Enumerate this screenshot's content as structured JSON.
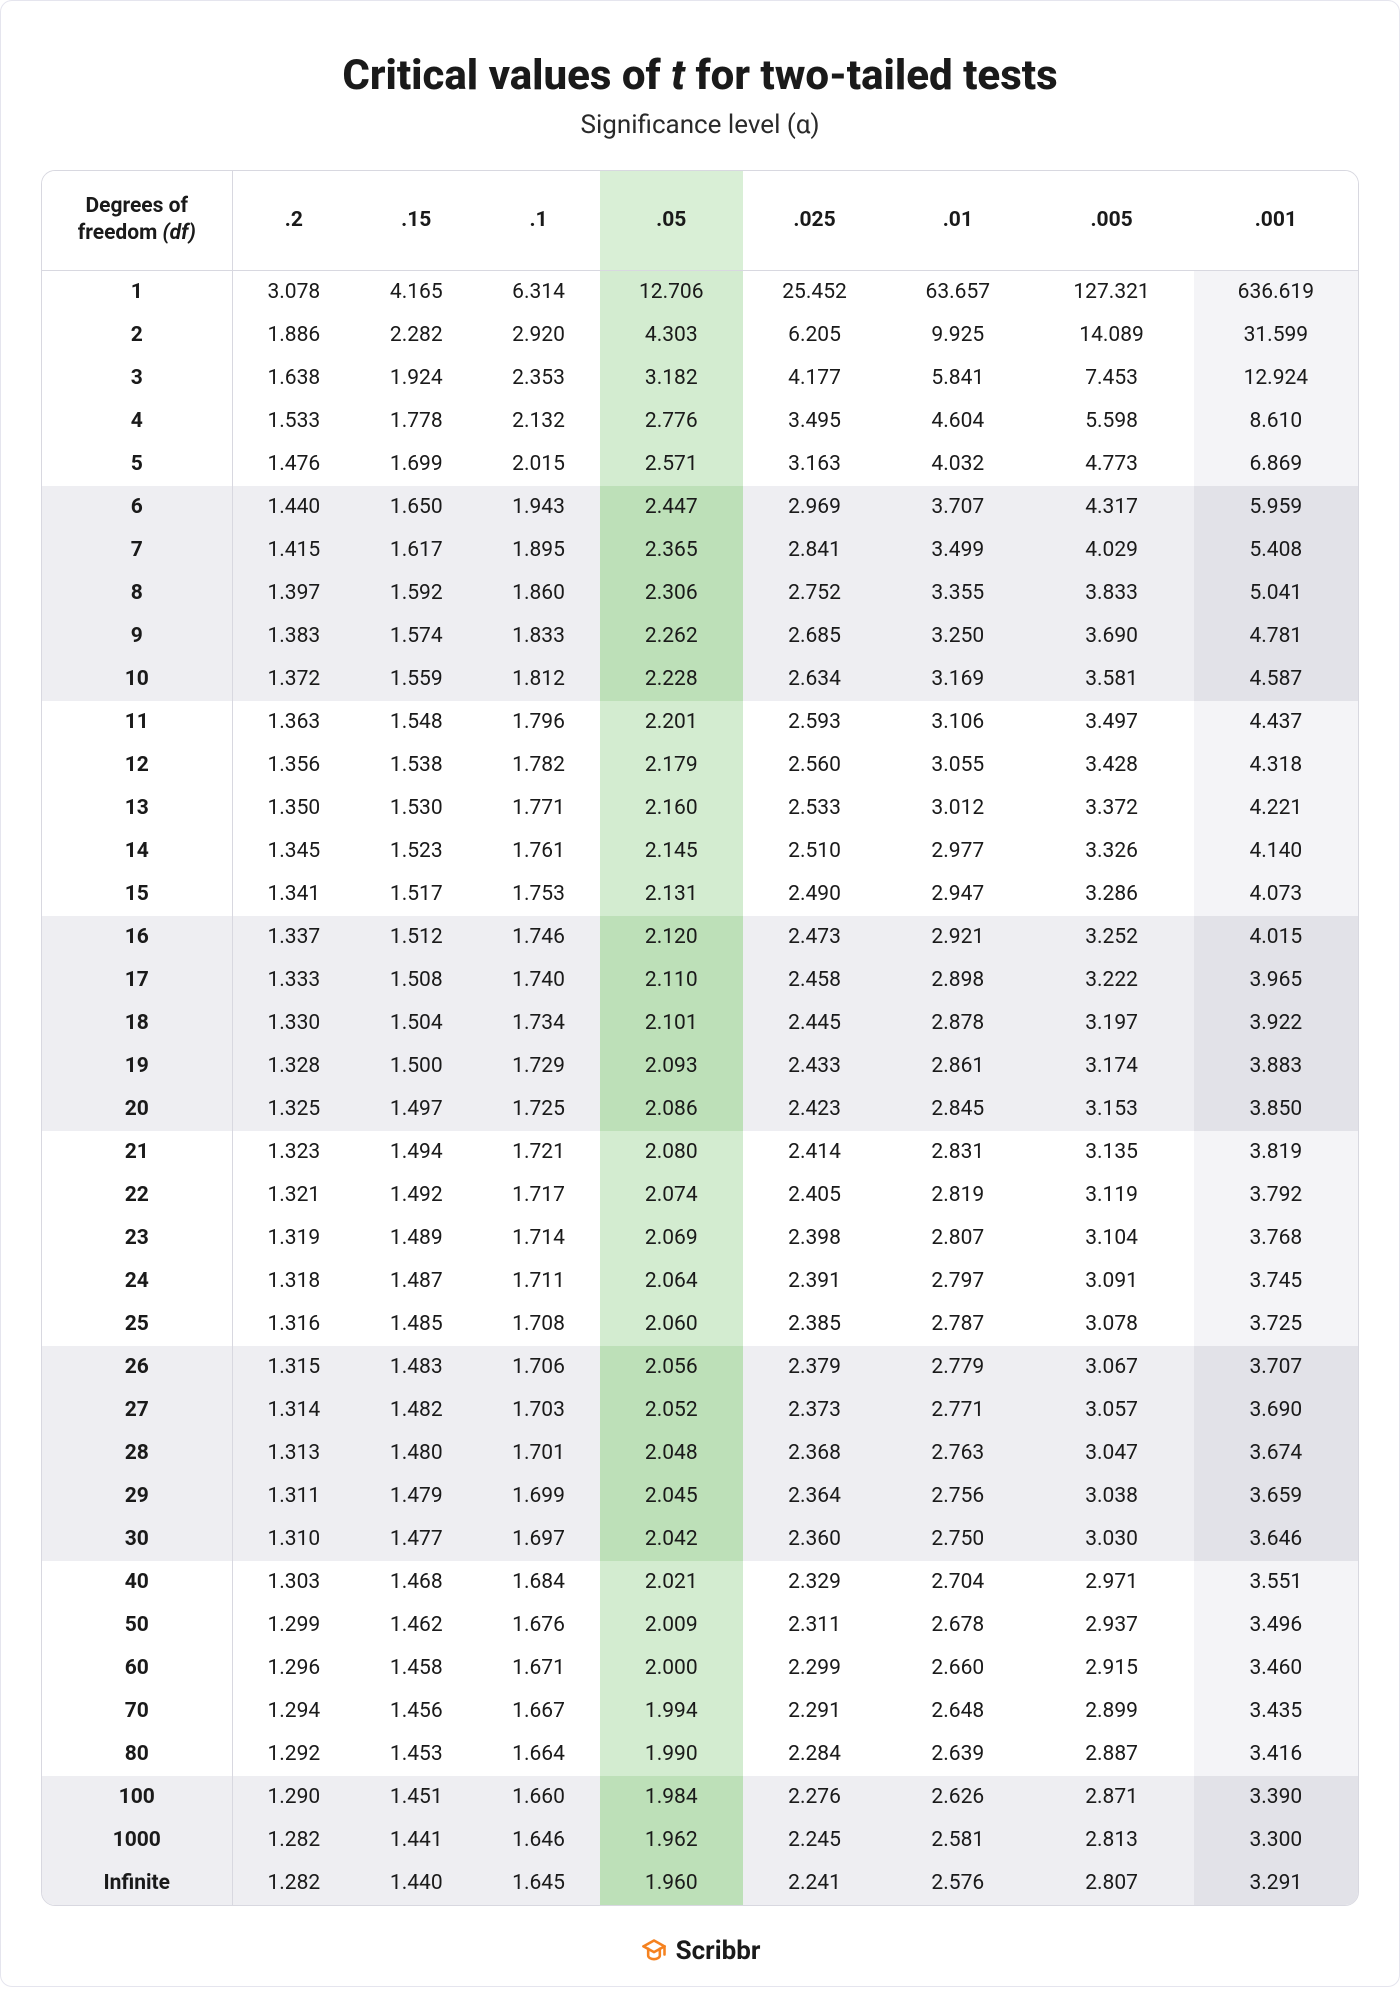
{
  "title_pre": "Critical values of ",
  "title_ital": "t",
  "title_post": " for two-tailed tests",
  "subtitle": "Significance level (α)",
  "brand": "Scribbr",
  "colors": {
    "highlight_light": "#d3ecd0",
    "highlight_dark": "#bde0b8",
    "highlight_head": "#d9efd6",
    "band": "#eeeef2",
    "border": "#d8d8e0",
    "text": "#1a1a1a",
    "brand_accent": "#f58220",
    "last_col_light": "#f4f4f7",
    "last_col_band": "#e2e2e8"
  },
  "table": {
    "df_header_line1": "Degrees of",
    "df_header_line2_pre": "freedom ",
    "df_header_line2_ital": "(df)",
    "columns": [
      ".2",
      ".15",
      ".1",
      ".05",
      ".025",
      ".01",
      ".005",
      ".001"
    ],
    "highlight_col_index": 3,
    "band_groups": 5,
    "rows": [
      {
        "df": "1",
        "v": [
          "3.078",
          "4.165",
          "6.314",
          "12.706",
          "25.452",
          "63.657",
          "127.321",
          "636.619"
        ]
      },
      {
        "df": "2",
        "v": [
          "1.886",
          "2.282",
          "2.920",
          "4.303",
          "6.205",
          "9.925",
          "14.089",
          "31.599"
        ]
      },
      {
        "df": "3",
        "v": [
          "1.638",
          "1.924",
          "2.353",
          "3.182",
          "4.177",
          "5.841",
          "7.453",
          "12.924"
        ]
      },
      {
        "df": "4",
        "v": [
          "1.533",
          "1.778",
          "2.132",
          "2.776",
          "3.495",
          "4.604",
          "5.598",
          "8.610"
        ]
      },
      {
        "df": "5",
        "v": [
          "1.476",
          "1.699",
          "2.015",
          "2.571",
          "3.163",
          "4.032",
          "4.773",
          "6.869"
        ]
      },
      {
        "df": "6",
        "v": [
          "1.440",
          "1.650",
          "1.943",
          "2.447",
          "2.969",
          "3.707",
          "4.317",
          "5.959"
        ]
      },
      {
        "df": "7",
        "v": [
          "1.415",
          "1.617",
          "1.895",
          "2.365",
          "2.841",
          "3.499",
          "4.029",
          "5.408"
        ]
      },
      {
        "df": "8",
        "v": [
          "1.397",
          "1.592",
          "1.860",
          "2.306",
          "2.752",
          "3.355",
          "3.833",
          "5.041"
        ]
      },
      {
        "df": "9",
        "v": [
          "1.383",
          "1.574",
          "1.833",
          "2.262",
          "2.685",
          "3.250",
          "3.690",
          "4.781"
        ]
      },
      {
        "df": "10",
        "v": [
          "1.372",
          "1.559",
          "1.812",
          "2.228",
          "2.634",
          "3.169",
          "3.581",
          "4.587"
        ]
      },
      {
        "df": "11",
        "v": [
          "1.363",
          "1.548",
          "1.796",
          "2.201",
          "2.593",
          "3.106",
          "3.497",
          "4.437"
        ]
      },
      {
        "df": "12",
        "v": [
          "1.356",
          "1.538",
          "1.782",
          "2.179",
          "2.560",
          "3.055",
          "3.428",
          "4.318"
        ]
      },
      {
        "df": "13",
        "v": [
          "1.350",
          "1.530",
          "1.771",
          "2.160",
          "2.533",
          "3.012",
          "3.372",
          "4.221"
        ]
      },
      {
        "df": "14",
        "v": [
          "1.345",
          "1.523",
          "1.761",
          "2.145",
          "2.510",
          "2.977",
          "3.326",
          "4.140"
        ]
      },
      {
        "df": "15",
        "v": [
          "1.341",
          "1.517",
          "1.753",
          "2.131",
          "2.490",
          "2.947",
          "3.286",
          "4.073"
        ]
      },
      {
        "df": "16",
        "v": [
          "1.337",
          "1.512",
          "1.746",
          "2.120",
          "2.473",
          "2.921",
          "3.252",
          "4.015"
        ]
      },
      {
        "df": "17",
        "v": [
          "1.333",
          "1.508",
          "1.740",
          "2.110",
          "2.458",
          "2.898",
          "3.222",
          "3.965"
        ]
      },
      {
        "df": "18",
        "v": [
          "1.330",
          "1.504",
          "1.734",
          "2.101",
          "2.445",
          "2.878",
          "3.197",
          "3.922"
        ]
      },
      {
        "df": "19",
        "v": [
          "1.328",
          "1.500",
          "1.729",
          "2.093",
          "2.433",
          "2.861",
          "3.174",
          "3.883"
        ]
      },
      {
        "df": "20",
        "v": [
          "1.325",
          "1.497",
          "1.725",
          "2.086",
          "2.423",
          "2.845",
          "3.153",
          "3.850"
        ]
      },
      {
        "df": "21",
        "v": [
          "1.323",
          "1.494",
          "1.721",
          "2.080",
          "2.414",
          "2.831",
          "3.135",
          "3.819"
        ]
      },
      {
        "df": "22",
        "v": [
          "1.321",
          "1.492",
          "1.717",
          "2.074",
          "2.405",
          "2.819",
          "3.119",
          "3.792"
        ]
      },
      {
        "df": "23",
        "v": [
          "1.319",
          "1.489",
          "1.714",
          "2.069",
          "2.398",
          "2.807",
          "3.104",
          "3.768"
        ]
      },
      {
        "df": "24",
        "v": [
          "1.318",
          "1.487",
          "1.711",
          "2.064",
          "2.391",
          "2.797",
          "3.091",
          "3.745"
        ]
      },
      {
        "df": "25",
        "v": [
          "1.316",
          "1.485",
          "1.708",
          "2.060",
          "2.385",
          "2.787",
          "3.078",
          "3.725"
        ]
      },
      {
        "df": "26",
        "v": [
          "1.315",
          "1.483",
          "1.706",
          "2.056",
          "2.379",
          "2.779",
          "3.067",
          "3.707"
        ]
      },
      {
        "df": "27",
        "v": [
          "1.314",
          "1.482",
          "1.703",
          "2.052",
          "2.373",
          "2.771",
          "3.057",
          "3.690"
        ]
      },
      {
        "df": "28",
        "v": [
          "1.313",
          "1.480",
          "1.701",
          "2.048",
          "2.368",
          "2.763",
          "3.047",
          "3.674"
        ]
      },
      {
        "df": "29",
        "v": [
          "1.311",
          "1.479",
          "1.699",
          "2.045",
          "2.364",
          "2.756",
          "3.038",
          "3.659"
        ]
      },
      {
        "df": "30",
        "v": [
          "1.310",
          "1.477",
          "1.697",
          "2.042",
          "2.360",
          "2.750",
          "3.030",
          "3.646"
        ]
      },
      {
        "df": "40",
        "v": [
          "1.303",
          "1.468",
          "1.684",
          "2.021",
          "2.329",
          "2.704",
          "2.971",
          "3.551"
        ]
      },
      {
        "df": "50",
        "v": [
          "1.299",
          "1.462",
          "1.676",
          "2.009",
          "2.311",
          "2.678",
          "2.937",
          "3.496"
        ]
      },
      {
        "df": "60",
        "v": [
          "1.296",
          "1.458",
          "1.671",
          "2.000",
          "2.299",
          "2.660",
          "2.915",
          "3.460"
        ]
      },
      {
        "df": "70",
        "v": [
          "1.294",
          "1.456",
          "1.667",
          "1.994",
          "2.291",
          "2.648",
          "2.899",
          "3.435"
        ]
      },
      {
        "df": "80",
        "v": [
          "1.292",
          "1.453",
          "1.664",
          "1.990",
          "2.284",
          "2.639",
          "2.887",
          "3.416"
        ]
      },
      {
        "df": "100",
        "v": [
          "1.290",
          "1.451",
          "1.660",
          "1.984",
          "2.276",
          "2.626",
          "2.871",
          "3.390"
        ]
      },
      {
        "df": "1000",
        "v": [
          "1.282",
          "1.441",
          "1.646",
          "1.962",
          "2.245",
          "2.581",
          "2.813",
          "3.300"
        ]
      },
      {
        "df": "Infinite",
        "v": [
          "1.282",
          "1.440",
          "1.645",
          "1.960",
          "2.241",
          "2.576",
          "2.807",
          "3.291"
        ]
      }
    ]
  }
}
